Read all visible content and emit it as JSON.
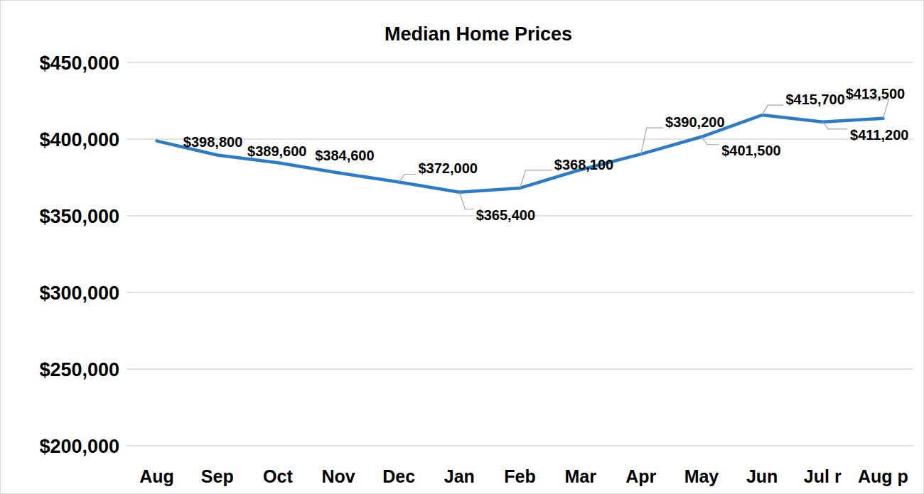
{
  "chart_data": {
    "type": "line",
    "title": "Median Home Prices",
    "categories": [
      "Aug",
      "Sep",
      "Oct",
      "Nov",
      "Dec",
      "Jan",
      "Feb",
      "Mar",
      "Apr",
      "May",
      "Jun",
      "Jul r",
      "Aug p"
    ],
    "values": [
      398800,
      389600,
      384600,
      378000,
      372000,
      365400,
      368100,
      380000,
      390200,
      401500,
      415700,
      411200,
      413500
    ],
    "value_labels": [
      "$398,800",
      "$389,600",
      "$384,600",
      null,
      "$372,000",
      "$365,400",
      "$368,100",
      null,
      "$390,200",
      "$401,500",
      "$415,700",
      "$411,200",
      "$413,500"
    ],
    "color": "#2c7bc6",
    "ylim": [
      200000,
      450000
    ],
    "yticks": [
      {
        "value": 200000,
        "label": "$200,000"
      },
      {
        "value": 250000,
        "label": "$250,000"
      },
      {
        "value": 300000,
        "label": "$300,000"
      },
      {
        "value": 350000,
        "label": "$350,000"
      },
      {
        "value": 400000,
        "label": "$400,000"
      },
      {
        "value": 450000,
        "label": "$450,000"
      }
    ],
    "grid": true,
    "data_labels": true
  }
}
